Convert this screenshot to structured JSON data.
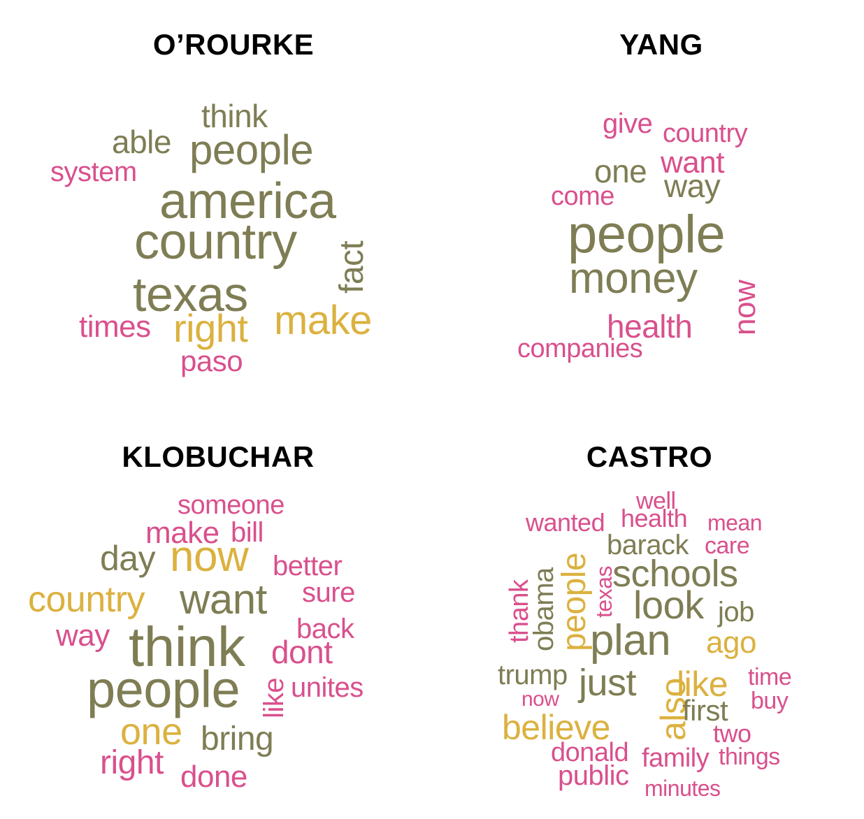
{
  "colors": {
    "olive": "#7e7d54",
    "gold": "#dbb13f",
    "pink": "#d9508d"
  },
  "clouds": {
    "orourke": {
      "title": "O’ROURKE",
      "words": [
        "think",
        "able",
        "people",
        "system",
        "america",
        "country",
        "fact",
        "texas",
        "times",
        "right",
        "make",
        "paso"
      ]
    },
    "yang": {
      "title": "YANG",
      "words": [
        "give",
        "country",
        "want",
        "one",
        "way",
        "come",
        "people",
        "money",
        "now",
        "health",
        "companies"
      ]
    },
    "klobuchar": {
      "title": "KLOBUCHAR",
      "words": [
        "someone",
        "make",
        "bill",
        "day",
        "now",
        "better",
        "sure",
        "country",
        "want",
        "back",
        "way",
        "think",
        "dont",
        "people",
        "unites",
        "like",
        "one",
        "bring",
        "right",
        "done"
      ]
    },
    "castro": {
      "title": "CASTRO",
      "words": [
        "well",
        "wanted",
        "health",
        "mean",
        "barack",
        "care",
        "thank",
        "obama",
        "people",
        "texas",
        "schools",
        "look",
        "job",
        "plan",
        "ago",
        "trump",
        "just",
        "like",
        "time",
        "now",
        "also",
        "first",
        "buy",
        "believe",
        "two",
        "donald",
        "family",
        "things",
        "public",
        "minutes"
      ]
    }
  }
}
